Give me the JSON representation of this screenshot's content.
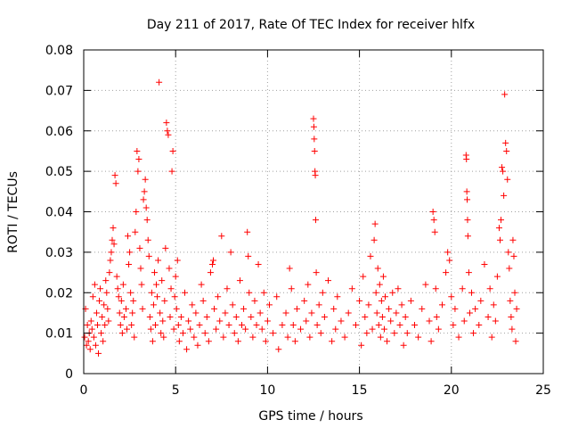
{
  "chart_data": {
    "type": "scatter",
    "title": "Day 211 of 2017, Rate Of TEC Index for receiver hlfx",
    "xlabel": "GPS time / hours",
    "ylabel": "ROTI / TECUs",
    "xlim": [
      0,
      25
    ],
    "ylim": [
      0,
      0.08
    ],
    "x_ticks": [
      0,
      5,
      10,
      15,
      20,
      25
    ],
    "x_tick_labels": [
      "0",
      "5",
      "10",
      "15",
      "20",
      "25"
    ],
    "y_ticks": [
      0,
      0.01,
      0.02,
      0.03,
      0.04,
      0.05,
      0.06,
      0.07,
      0.08
    ],
    "y_tick_labels": [
      "0",
      "0.01",
      "0.02",
      "0.03",
      "0.04",
      "0.05",
      "0.06",
      "0.07",
      "0.08"
    ],
    "grid": true,
    "grid_style": "dotted",
    "marker": "+",
    "color": "#ff0000",
    "series": [
      {
        "points": [
          [
            0.05,
            0.009
          ],
          [
            0.1,
            0.016
          ],
          [
            0.15,
            0.007
          ],
          [
            0.2,
            0.012
          ],
          [
            0.25,
            0.008
          ],
          [
            0.3,
            0.01
          ],
          [
            0.35,
            0.006
          ],
          [
            0.4,
            0.013
          ],
          [
            0.45,
            0.011
          ],
          [
            0.5,
            0.019
          ],
          [
            0.55,
            0.009
          ],
          [
            0.6,
            0.022
          ],
          [
            0.65,
            0.007
          ],
          [
            0.7,
            0.015
          ],
          [
            0.75,
            0.012
          ],
          [
            0.8,
            0.005
          ],
          [
            0.85,
            0.018
          ],
          [
            0.9,
            0.021
          ],
          [
            0.95,
            0.01
          ],
          [
            1.0,
            0.014
          ],
          [
            1.05,
            0.008
          ],
          [
            1.1,
            0.017
          ],
          [
            1.15,
            0.012
          ],
          [
            1.2,
            0.023
          ],
          [
            1.25,
            0.02
          ],
          [
            1.3,
            0.016
          ],
          [
            1.35,
            0.013
          ],
          [
            1.4,
            0.025
          ],
          [
            1.45,
            0.028
          ],
          [
            1.5,
            0.03
          ],
          [
            1.55,
            0.033
          ],
          [
            1.6,
            0.036
          ],
          [
            1.65,
            0.032
          ],
          [
            1.7,
            0.049
          ],
          [
            1.75,
            0.047
          ],
          [
            1.8,
            0.024
          ],
          [
            1.85,
            0.021
          ],
          [
            1.9,
            0.019
          ],
          [
            1.95,
            0.015
          ],
          [
            2.0,
            0.012
          ],
          [
            2.05,
            0.018
          ],
          [
            2.1,
            0.01
          ],
          [
            2.15,
            0.022
          ],
          [
            2.2,
            0.014
          ],
          [
            2.3,
            0.016
          ],
          [
            2.35,
            0.011
          ],
          [
            2.4,
            0.034
          ],
          [
            2.45,
            0.027
          ],
          [
            2.5,
            0.03
          ],
          [
            2.55,
            0.02
          ],
          [
            2.6,
            0.012
          ],
          [
            2.65,
            0.015
          ],
          [
            2.7,
            0.018
          ],
          [
            2.75,
            0.009
          ],
          [
            2.8,
            0.035
          ],
          [
            2.85,
            0.04
          ],
          [
            2.9,
            0.055
          ],
          [
            2.95,
            0.05
          ],
          [
            3.0,
            0.053
          ],
          [
            3.05,
            0.031
          ],
          [
            3.1,
            0.026
          ],
          [
            3.15,
            0.022
          ],
          [
            3.2,
            0.016
          ],
          [
            3.25,
            0.043
          ],
          [
            3.3,
            0.045
          ],
          [
            3.35,
            0.048
          ],
          [
            3.4,
            0.041
          ],
          [
            3.45,
            0.038
          ],
          [
            3.5,
            0.033
          ],
          [
            3.55,
            0.029
          ],
          [
            3.6,
            0.014
          ],
          [
            3.65,
            0.011
          ],
          [
            3.7,
            0.02
          ],
          [
            3.75,
            0.008
          ],
          [
            3.8,
            0.017
          ],
          [
            3.85,
            0.025
          ],
          [
            3.9,
            0.012
          ],
          [
            3.95,
            0.022
          ],
          [
            4.0,
            0.019
          ],
          [
            4.05,
            0.028
          ],
          [
            4.1,
            0.072
          ],
          [
            4.15,
            0.015
          ],
          [
            4.2,
            0.01
          ],
          [
            4.25,
            0.023
          ],
          [
            4.3,
            0.013
          ],
          [
            4.35,
            0.009
          ],
          [
            4.4,
            0.018
          ],
          [
            4.45,
            0.031
          ],
          [
            4.5,
            0.062
          ],
          [
            4.55,
            0.06
          ],
          [
            4.6,
            0.059
          ],
          [
            4.65,
            0.026
          ],
          [
            4.7,
            0.014
          ],
          [
            4.75,
            0.021
          ],
          [
            4.8,
            0.05
          ],
          [
            4.85,
            0.055
          ],
          [
            4.9,
            0.011
          ],
          [
            4.95,
            0.019
          ],
          [
            5.0,
            0.024
          ],
          [
            5.05,
            0.016
          ],
          [
            5.1,
            0.028
          ],
          [
            5.15,
            0.012
          ],
          [
            5.2,
            0.008
          ],
          [
            5.3,
            0.014
          ],
          [
            5.4,
            0.01
          ],
          [
            5.5,
            0.02
          ],
          [
            5.6,
            0.006
          ],
          [
            5.7,
            0.013
          ],
          [
            5.8,
            0.011
          ],
          [
            5.9,
            0.017
          ],
          [
            6.0,
            0.009
          ],
          [
            6.1,
            0.015
          ],
          [
            6.2,
            0.007
          ],
          [
            6.3,
            0.012
          ],
          [
            6.4,
            0.022
          ],
          [
            6.5,
            0.018
          ],
          [
            6.6,
            0.01
          ],
          [
            6.7,
            0.014
          ],
          [
            6.8,
            0.008
          ],
          [
            6.9,
            0.025
          ],
          [
            7.0,
            0.027
          ],
          [
            7.05,
            0.028
          ],
          [
            7.1,
            0.016
          ],
          [
            7.2,
            0.011
          ],
          [
            7.3,
            0.019
          ],
          [
            7.4,
            0.013
          ],
          [
            7.5,
            0.034
          ],
          [
            7.6,
            0.009
          ],
          [
            7.7,
            0.015
          ],
          [
            7.8,
            0.021
          ],
          [
            7.9,
            0.012
          ],
          [
            8.0,
            0.03
          ],
          [
            8.1,
            0.017
          ],
          [
            8.2,
            0.01
          ],
          [
            8.3,
            0.014
          ],
          [
            8.4,
            0.008
          ],
          [
            8.5,
            0.023
          ],
          [
            8.6,
            0.012
          ],
          [
            8.7,
            0.016
          ],
          [
            8.8,
            0.011
          ],
          [
            8.9,
            0.035
          ],
          [
            8.95,
            0.029
          ],
          [
            9.0,
            0.02
          ],
          [
            9.1,
            0.014
          ],
          [
            9.2,
            0.009
          ],
          [
            9.3,
            0.018
          ],
          [
            9.4,
            0.012
          ],
          [
            9.5,
            0.027
          ],
          [
            9.6,
            0.015
          ],
          [
            9.7,
            0.011
          ],
          [
            9.8,
            0.02
          ],
          [
            9.9,
            0.008
          ],
          [
            10.0,
            0.013
          ],
          [
            10.1,
            0.017
          ],
          [
            10.3,
            0.01
          ],
          [
            10.5,
            0.019
          ],
          [
            10.6,
            0.006
          ],
          [
            10.8,
            0.012
          ],
          [
            11.0,
            0.015
          ],
          [
            11.1,
            0.009
          ],
          [
            11.2,
            0.026
          ],
          [
            11.3,
            0.021
          ],
          [
            11.4,
            0.012
          ],
          [
            11.5,
            0.008
          ],
          [
            11.6,
            0.016
          ],
          [
            11.8,
            0.011
          ],
          [
            12.0,
            0.018
          ],
          [
            12.1,
            0.013
          ],
          [
            12.2,
            0.022
          ],
          [
            12.3,
            0.009
          ],
          [
            12.4,
            0.015
          ],
          [
            12.5,
            0.063
          ],
          [
            12.52,
            0.061
          ],
          [
            12.54,
            0.058
          ],
          [
            12.56,
            0.055
          ],
          [
            12.58,
            0.05
          ],
          [
            12.6,
            0.049
          ],
          [
            12.62,
            0.038
          ],
          [
            12.65,
            0.025
          ],
          [
            12.7,
            0.012
          ],
          [
            12.8,
            0.017
          ],
          [
            12.9,
            0.01
          ],
          [
            13.0,
            0.02
          ],
          [
            13.1,
            0.014
          ],
          [
            13.3,
            0.023
          ],
          [
            13.5,
            0.008
          ],
          [
            13.6,
            0.016
          ],
          [
            13.7,
            0.011
          ],
          [
            13.8,
            0.019
          ],
          [
            14.0,
            0.013
          ],
          [
            14.2,
            0.009
          ],
          [
            14.4,
            0.015
          ],
          [
            14.6,
            0.021
          ],
          [
            14.8,
            0.012
          ],
          [
            15.0,
            0.018
          ],
          [
            15.1,
            0.007
          ],
          [
            15.2,
            0.024
          ],
          [
            15.3,
            0.014
          ],
          [
            15.4,
            0.01
          ],
          [
            15.5,
            0.017
          ],
          [
            15.6,
            0.029
          ],
          [
            15.7,
            0.011
          ],
          [
            15.8,
            0.033
          ],
          [
            15.85,
            0.037
          ],
          [
            15.9,
            0.02
          ],
          [
            15.95,
            0.015
          ],
          [
            16.0,
            0.026
          ],
          [
            16.05,
            0.012
          ],
          [
            16.1,
            0.022
          ],
          [
            16.15,
            0.009
          ],
          [
            16.2,
            0.018
          ],
          [
            16.25,
            0.014
          ],
          [
            16.3,
            0.024
          ],
          [
            16.35,
            0.011
          ],
          [
            16.4,
            0.019
          ],
          [
            16.5,
            0.008
          ],
          [
            16.6,
            0.016
          ],
          [
            16.7,
            0.013
          ],
          [
            16.8,
            0.02
          ],
          [
            16.9,
            0.01
          ],
          [
            17.0,
            0.015
          ],
          [
            17.1,
            0.021
          ],
          [
            17.2,
            0.012
          ],
          [
            17.3,
            0.017
          ],
          [
            17.4,
            0.007
          ],
          [
            17.5,
            0.014
          ],
          [
            17.6,
            0.01
          ],
          [
            17.8,
            0.018
          ],
          [
            18.0,
            0.012
          ],
          [
            18.2,
            0.009
          ],
          [
            18.4,
            0.016
          ],
          [
            18.6,
            0.022
          ],
          [
            18.8,
            0.013
          ],
          [
            18.9,
            0.008
          ],
          [
            19.0,
            0.04
          ],
          [
            19.05,
            0.038
          ],
          [
            19.1,
            0.035
          ],
          [
            19.15,
            0.021
          ],
          [
            19.2,
            0.014
          ],
          [
            19.3,
            0.011
          ],
          [
            19.5,
            0.017
          ],
          [
            19.7,
            0.025
          ],
          [
            19.8,
            0.03
          ],
          [
            19.9,
            0.028
          ],
          [
            20.0,
            0.019
          ],
          [
            20.1,
            0.012
          ],
          [
            20.2,
            0.016
          ],
          [
            20.4,
            0.009
          ],
          [
            20.6,
            0.021
          ],
          [
            20.7,
            0.013
          ],
          [
            20.8,
            0.054
          ],
          [
            20.82,
            0.053
          ],
          [
            20.84,
            0.045
          ],
          [
            20.86,
            0.043
          ],
          [
            20.88,
            0.038
          ],
          [
            20.9,
            0.034
          ],
          [
            20.95,
            0.025
          ],
          [
            21.0,
            0.015
          ],
          [
            21.1,
            0.02
          ],
          [
            21.2,
            0.01
          ],
          [
            21.3,
            0.016
          ],
          [
            21.5,
            0.012
          ],
          [
            21.6,
            0.018
          ],
          [
            21.8,
            0.027
          ],
          [
            22.0,
            0.014
          ],
          [
            22.1,
            0.021
          ],
          [
            22.2,
            0.009
          ],
          [
            22.3,
            0.017
          ],
          [
            22.4,
            0.013
          ],
          [
            22.5,
            0.024
          ],
          [
            22.6,
            0.036
          ],
          [
            22.65,
            0.033
          ],
          [
            22.7,
            0.038
          ],
          [
            22.75,
            0.051
          ],
          [
            22.8,
            0.05
          ],
          [
            22.85,
            0.044
          ],
          [
            22.9,
            0.069
          ],
          [
            22.95,
            0.057
          ],
          [
            23.0,
            0.055
          ],
          [
            23.05,
            0.048
          ],
          [
            23.1,
            0.03
          ],
          [
            23.15,
            0.026
          ],
          [
            23.2,
            0.018
          ],
          [
            23.25,
            0.014
          ],
          [
            23.3,
            0.011
          ],
          [
            23.35,
            0.033
          ],
          [
            23.4,
            0.029
          ],
          [
            23.45,
            0.02
          ],
          [
            23.5,
            0.008
          ],
          [
            23.55,
            0.016
          ]
        ]
      }
    ]
  }
}
